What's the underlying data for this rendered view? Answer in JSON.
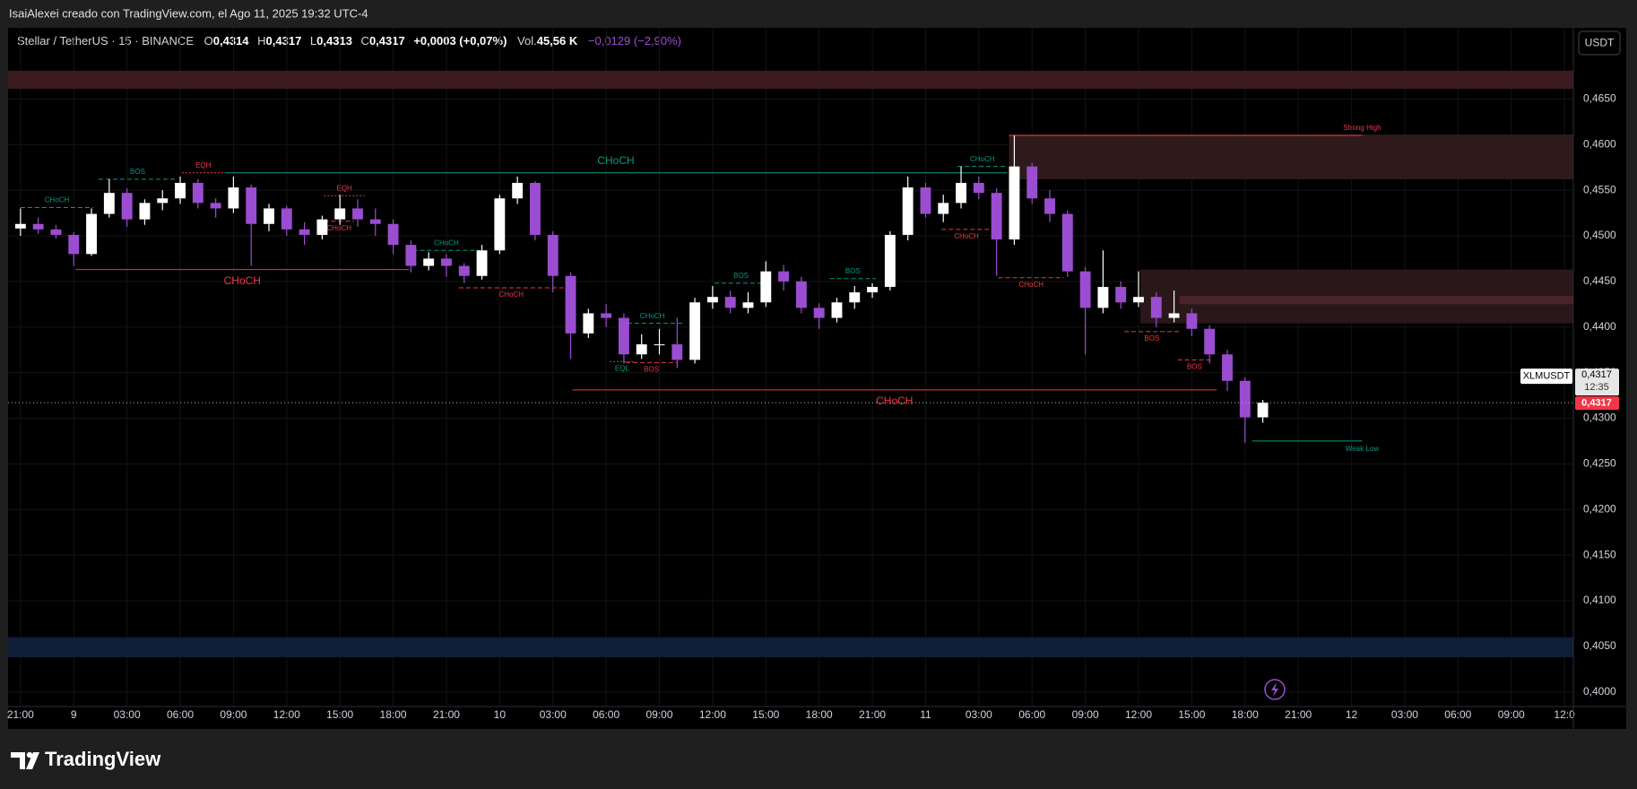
{
  "header": {
    "author_line": "IsaiAlexei creado con TradingView.com, el Ago 11, 2025 19:32 UTC-4",
    "symbol": "Stellar / TetherUS · 15 · BINANCE",
    "open_label": "O",
    "open": "0,4314",
    "high_label": "H",
    "high": "0,4317",
    "low_label": "L",
    "low": "0,4313",
    "close_label": "C",
    "close": "0,4317",
    "change": "+0,0003 (+0,07%)",
    "volume_label": "Vol.",
    "volume": "45,56 K",
    "volume_change": "−0,0129 (−2,90%)",
    "currency_button": "USDT"
  },
  "footer": {
    "brand": "TradingView"
  },
  "chart_data": {
    "type": "candlestick",
    "up_color": "#ffffff",
    "down_color": "#9b4dd1",
    "grid": true,
    "xlim": [
      -0.7,
      87.5
    ],
    "ylim": [
      0.3984,
      0.4728
    ],
    "xticks": [
      {
        "value": 0,
        "label": "21:00"
      },
      {
        "value": 3,
        "label": "9"
      },
      {
        "value": 6,
        "label": "03:00"
      },
      {
        "value": 9,
        "label": "06:00"
      },
      {
        "value": 12,
        "label": "09:00"
      },
      {
        "value": 15,
        "label": "12:00"
      },
      {
        "value": 18,
        "label": "15:00"
      },
      {
        "value": 21,
        "label": "18:00"
      },
      {
        "value": 24,
        "label": "21:00"
      },
      {
        "value": 27,
        "label": "10"
      },
      {
        "value": 30,
        "label": "03:00"
      },
      {
        "value": 33,
        "label": "06:00"
      },
      {
        "value": 36,
        "label": "09:00"
      },
      {
        "value": 39,
        "label": "12:00"
      },
      {
        "value": 42,
        "label": "15:00"
      },
      {
        "value": 45,
        "label": "18:00"
      },
      {
        "value": 48,
        "label": "21:00"
      },
      {
        "value": 51,
        "label": "11"
      },
      {
        "value": 54,
        "label": "03:00"
      },
      {
        "value": 57,
        "label": "06:00"
      },
      {
        "value": 60,
        "label": "09:00"
      },
      {
        "value": 63,
        "label": "12:00"
      },
      {
        "value": 66,
        "label": "15:00"
      },
      {
        "value": 69,
        "label": "18:00"
      },
      {
        "value": 72,
        "label": "21:00"
      },
      {
        "value": 75,
        "label": "12"
      },
      {
        "value": 78,
        "label": "03:00"
      },
      {
        "value": 81,
        "label": "06:00"
      },
      {
        "value": 84,
        "label": "09:00"
      },
      {
        "value": 87,
        "label": "12:0"
      }
    ],
    "yticks": [
      {
        "value": 0.4,
        "label": "0,4000"
      },
      {
        "value": 0.405,
        "label": "0,4050"
      },
      {
        "value": 0.41,
        "label": "0,4100"
      },
      {
        "value": 0.415,
        "label": "0,4150"
      },
      {
        "value": 0.42,
        "label": "0,4200"
      },
      {
        "value": 0.425,
        "label": "0,4250"
      },
      {
        "value": 0.43,
        "label": "0,4300"
      },
      {
        "value": 0.435,
        "label": "0,4350"
      },
      {
        "value": 0.44,
        "label": "0,4400"
      },
      {
        "value": 0.445,
        "label": "0,4450"
      },
      {
        "value": 0.45,
        "label": "0,4500"
      },
      {
        "value": 0.455,
        "label": "0,4550"
      },
      {
        "value": 0.46,
        "label": "0,4600"
      },
      {
        "value": 0.465,
        "label": "0,4650"
      }
    ],
    "x": [
      0,
      1,
      2,
      3,
      4,
      5,
      6,
      7,
      8,
      9,
      10,
      11,
      12,
      13,
      14,
      15,
      16,
      17,
      18,
      19,
      20,
      21,
      22,
      23,
      24,
      25,
      26,
      27,
      28,
      29,
      30,
      31,
      32,
      33,
      34,
      35,
      36,
      37,
      38,
      39,
      40,
      41,
      42,
      43,
      44,
      45,
      46,
      47,
      48,
      49,
      50,
      51,
      52,
      53,
      54,
      55,
      56,
      57,
      58,
      59,
      60,
      61,
      62,
      63,
      64,
      65,
      66,
      67,
      68,
      69,
      70
    ],
    "ohlc": [
      [
        0.4508,
        0.453,
        0.45,
        0.4513
      ],
      [
        0.4513,
        0.452,
        0.4502,
        0.4507
      ],
      [
        0.4507,
        0.4512,
        0.4497,
        0.4501
      ],
      [
        0.4501,
        0.4504,
        0.4467,
        0.448
      ],
      [
        0.448,
        0.453,
        0.4478,
        0.4524
      ],
      [
        0.4524,
        0.4562,
        0.452,
        0.4547
      ],
      [
        0.4547,
        0.4552,
        0.451,
        0.4518
      ],
      [
        0.4518,
        0.454,
        0.4512,
        0.4536
      ],
      [
        0.4536,
        0.455,
        0.4528,
        0.4541
      ],
      [
        0.4541,
        0.4565,
        0.4535,
        0.4558
      ],
      [
        0.4558,
        0.4562,
        0.453,
        0.4536
      ],
      [
        0.4536,
        0.4541,
        0.452,
        0.453
      ],
      [
        0.453,
        0.4565,
        0.4525,
        0.4553
      ],
      [
        0.4553,
        0.4556,
        0.4467,
        0.4513
      ],
      [
        0.4513,
        0.4535,
        0.4505,
        0.453
      ],
      [
        0.453,
        0.4533,
        0.45,
        0.4507
      ],
      [
        0.4507,
        0.4515,
        0.449,
        0.4501
      ],
      [
        0.4501,
        0.4522,
        0.4496,
        0.4518
      ],
      [
        0.4518,
        0.4545,
        0.4512,
        0.453
      ],
      [
        0.453,
        0.454,
        0.451,
        0.4518
      ],
      [
        0.4518,
        0.453,
        0.45,
        0.4513
      ],
      [
        0.4513,
        0.4518,
        0.448,
        0.449
      ],
      [
        0.449,
        0.4495,
        0.446,
        0.4467
      ],
      [
        0.4467,
        0.4482,
        0.4462,
        0.4475
      ],
      [
        0.4475,
        0.448,
        0.4455,
        0.4467
      ],
      [
        0.4467,
        0.447,
        0.4448,
        0.4456
      ],
      [
        0.4456,
        0.449,
        0.4452,
        0.4484
      ],
      [
        0.4484,
        0.4545,
        0.448,
        0.4541
      ],
      [
        0.4541,
        0.4565,
        0.4535,
        0.4558
      ],
      [
        0.4558,
        0.456,
        0.4495,
        0.4501
      ],
      [
        0.4501,
        0.4505,
        0.4438,
        0.4456
      ],
      [
        0.4456,
        0.446,
        0.4365,
        0.4393
      ],
      [
        0.4393,
        0.442,
        0.4388,
        0.4415
      ],
      [
        0.4415,
        0.4425,
        0.44,
        0.441
      ],
      [
        0.441,
        0.4415,
        0.436,
        0.437
      ],
      [
        0.437,
        0.4392,
        0.4365,
        0.4381
      ],
      [
        0.4381,
        0.4398,
        0.437,
        0.4381
      ],
      [
        0.4381,
        0.441,
        0.4355,
        0.4364
      ],
      [
        0.4364,
        0.4432,
        0.436,
        0.4427
      ],
      [
        0.4427,
        0.4445,
        0.442,
        0.4433
      ],
      [
        0.4433,
        0.444,
        0.4415,
        0.4421
      ],
      [
        0.4421,
        0.4438,
        0.4415,
        0.4427
      ],
      [
        0.4427,
        0.4472,
        0.4422,
        0.4461
      ],
      [
        0.4461,
        0.4468,
        0.444,
        0.445
      ],
      [
        0.445,
        0.4455,
        0.4415,
        0.4421
      ],
      [
        0.4421,
        0.4426,
        0.4398,
        0.441
      ],
      [
        0.441,
        0.4432,
        0.4405,
        0.4427
      ],
      [
        0.4427,
        0.4445,
        0.442,
        0.4438
      ],
      [
        0.4438,
        0.4448,
        0.4432,
        0.4444
      ],
      [
        0.4444,
        0.4505,
        0.444,
        0.4501
      ],
      [
        0.4501,
        0.4565,
        0.4495,
        0.4553
      ],
      [
        0.4553,
        0.4558,
        0.452,
        0.4524
      ],
      [
        0.4524,
        0.4545,
        0.4515,
        0.4536
      ],
      [
        0.4536,
        0.4576,
        0.453,
        0.4558
      ],
      [
        0.4558,
        0.4565,
        0.454,
        0.4547
      ],
      [
        0.4547,
        0.4552,
        0.4456,
        0.4496
      ],
      [
        0.4496,
        0.461,
        0.449,
        0.4576
      ],
      [
        0.4576,
        0.458,
        0.4535,
        0.4541
      ],
      [
        0.4541,
        0.455,
        0.4515,
        0.4524
      ],
      [
        0.4524,
        0.4528,
        0.4455,
        0.4461
      ],
      [
        0.4461,
        0.4466,
        0.437,
        0.4421
      ],
      [
        0.4421,
        0.4484,
        0.4415,
        0.4444
      ],
      [
        0.4444,
        0.445,
        0.442,
        0.4427
      ],
      [
        0.4427,
        0.4461,
        0.4422,
        0.4433
      ],
      [
        0.4433,
        0.4438,
        0.44,
        0.441
      ],
      [
        0.441,
        0.444,
        0.4405,
        0.4415
      ],
      [
        0.4415,
        0.442,
        0.439,
        0.4398
      ],
      [
        0.4398,
        0.4402,
        0.436,
        0.437
      ],
      [
        0.437,
        0.4375,
        0.433,
        0.4341
      ],
      [
        0.4341,
        0.4345,
        0.4273,
        0.4301
      ],
      [
        0.4301,
        0.432,
        0.4295,
        0.4317
      ]
    ],
    "zones": [
      {
        "top": 0.4681,
        "bottom": 0.4661,
        "x0": -0.7,
        "x1": 87.5,
        "color": "#3b1b1e"
      },
      {
        "top": 0.4611,
        "bottom": 0.4562,
        "x0": 55.7,
        "x1": 87.5,
        "color": "#2e1a1b"
      },
      {
        "top": 0.4463,
        "bottom": 0.4404,
        "x0": 63.1,
        "x1": 87.5,
        "color": "#2a1719"
      },
      {
        "top": 0.4434,
        "bottom": 0.4425,
        "x0": 65.3,
        "x1": 87.5,
        "color": "#4a2429"
      },
      {
        "top": 0.406,
        "bottom": 0.4038,
        "x0": -0.7,
        "x1": 87.5,
        "color": "#0f1f38"
      }
    ],
    "structures": [
      {
        "label": "CHoCH",
        "price": 0.4531,
        "x0": 0,
        "x1": 4.1,
        "color": "#089981",
        "style": "dashed",
        "label_side": "above"
      },
      {
        "label": "BOS",
        "price": 0.4562,
        "x0": 4.4,
        "x1": 8.8,
        "color": "#089981",
        "style": "dashed",
        "label_side": "above"
      },
      {
        "label": "EQH",
        "price": 0.4569,
        "x0": 9.1,
        "x1": 11.5,
        "color": "#f23645",
        "style": "dotted",
        "label_side": "above"
      },
      {
        "label": "CHoCH",
        "price": 0.4569,
        "x0": 11.5,
        "x1": 55.6,
        "color": "#089981",
        "style": "solid",
        "label_side": "above"
      },
      {
        "label": "CHoCH",
        "price": 0.4463,
        "x0": 3.1,
        "x1": 21.9,
        "color": "#f23645",
        "style": "solid",
        "label_side": "below"
      },
      {
        "label": "EQH",
        "price": 0.4544,
        "x0": 17.1,
        "x1": 19.4,
        "color": "#f23645",
        "style": "dotted",
        "label_side": "above"
      },
      {
        "label": "CHoCH",
        "price": 0.4516,
        "x0": 17.1,
        "x1": 18.8,
        "color": "#f23645",
        "style": "dashed",
        "label_side": "below"
      },
      {
        "label": "CHoCH",
        "price": 0.4484,
        "x0": 22.1,
        "x1": 25.9,
        "color": "#089981",
        "style": "dashed",
        "label_side": "above"
      },
      {
        "label": "CHoCH",
        "price": 0.4443,
        "x0": 24.7,
        "x1": 30.6,
        "color": "#f23645",
        "style": "dashed",
        "label_side": "below"
      },
      {
        "label": "CHoCH",
        "price": 0.4331,
        "x0": 31.1,
        "x1": 67.4,
        "color": "#f23645",
        "style": "solid",
        "label_side": "below"
      },
      {
        "label": "CHoCH",
        "price": 0.4404,
        "x0": 33.8,
        "x1": 37.4,
        "color": "#089981",
        "style": "dashed",
        "label_side": "above"
      },
      {
        "label": "EQL",
        "price": 0.4362,
        "x0": 33.2,
        "x1": 34.6,
        "color": "#089981",
        "style": "dotted",
        "label_side": "below"
      },
      {
        "label": "BOS",
        "price": 0.4361,
        "x0": 34.1,
        "x1": 37.0,
        "color": "#f23645",
        "style": "dashed",
        "label_side": "below"
      },
      {
        "label": "BOS",
        "price": 0.4448,
        "x0": 39.1,
        "x1": 42.1,
        "color": "#089981",
        "style": "dashed",
        "label_side": "above"
      },
      {
        "label": "BOS",
        "price": 0.4453,
        "x0": 45.6,
        "x1": 48.2,
        "color": "#089981",
        "style": "dashed",
        "label_side": "above"
      },
      {
        "label": "CHoCH",
        "price": 0.4576,
        "x0": 52.8,
        "x1": 55.6,
        "color": "#089981",
        "style": "dashed",
        "label_side": "above"
      },
      {
        "label": "CHoCH",
        "price": 0.4507,
        "x0": 51.9,
        "x1": 54.7,
        "color": "#f23645",
        "style": "dashed",
        "label_side": "below"
      },
      {
        "label": "CHoCH",
        "price": 0.4454,
        "x0": 55.1,
        "x1": 58.8,
        "color": "#f23645",
        "style": "dashed",
        "label_side": "below"
      },
      {
        "label": "BOS",
        "price": 0.4395,
        "x0": 62.2,
        "x1": 65.3,
        "color": "#f23645",
        "style": "dashed",
        "label_side": "below"
      },
      {
        "label": "BOS",
        "price": 0.4364,
        "x0": 65.2,
        "x1": 67.1,
        "color": "#f23645",
        "style": "dashed",
        "label_side": "below"
      }
    ],
    "levels": [
      {
        "label": "Strong High",
        "price": 0.461,
        "x0": 55.7,
        "x1": 75.6,
        "color": "#f23645",
        "label_side": "above"
      },
      {
        "label": "Weak Low",
        "price": 0.4275,
        "x0": 69.4,
        "x1": 75.6,
        "color": "#089981",
        "label_side": "below"
      }
    ],
    "symbol": "XLMUSDT",
    "countdown": "12:35",
    "last_price": {
      "value": 0.4317,
      "label": "0,4317"
    }
  }
}
